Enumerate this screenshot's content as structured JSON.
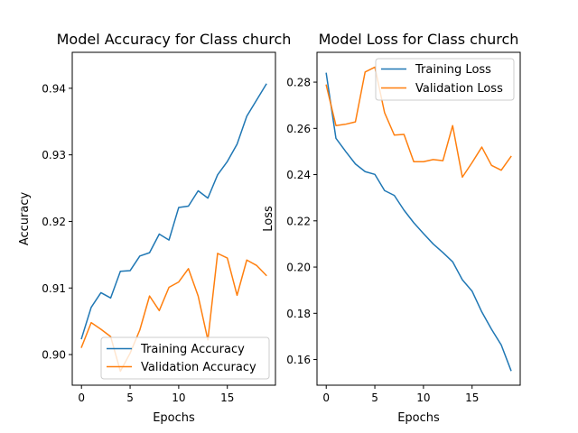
{
  "chart_data": [
    {
      "type": "line",
      "title": "Model Accuracy for Class church",
      "xlabel": "Epochs",
      "ylabel": "Accuracy",
      "xlim": [
        -0.95,
        19.95
      ],
      "ylim": [
        0.8954,
        0.9454
      ],
      "xticks": [
        0,
        5,
        10,
        15
      ],
      "yticks": [
        0.9,
        0.91,
        0.92,
        0.93,
        0.94
      ],
      "ytick_labels": [
        "0.90",
        "0.91",
        "0.92",
        "0.93",
        "0.94"
      ],
      "grid": false,
      "legend_position": "lower-right",
      "x": [
        0,
        1,
        2,
        3,
        4,
        5,
        6,
        7,
        8,
        9,
        10,
        11,
        12,
        13,
        14,
        15,
        16,
        17,
        18,
        19
      ],
      "series": [
        {
          "name": "Training Accuracy",
          "color": "#1f77b4",
          "values": [
            0.9024,
            0.9071,
            0.9093,
            0.9085,
            0.9125,
            0.9126,
            0.9148,
            0.9153,
            0.9181,
            0.9172,
            0.9221,
            0.9223,
            0.9246,
            0.9235,
            0.927,
            0.929,
            0.9316,
            0.9358,
            0.9382,
            0.9406
          ]
        },
        {
          "name": "Validation Accuracy",
          "color": "#ff7f0e",
          "values": [
            0.9011,
            0.9048,
            0.9038,
            0.9027,
            0.8975,
            0.9002,
            0.9037,
            0.9088,
            0.9066,
            0.9101,
            0.9109,
            0.9129,
            0.9088,
            0.9022,
            0.9152,
            0.9145,
            0.9089,
            0.9142,
            0.9134,
            0.9119
          ]
        }
      ]
    },
    {
      "type": "line",
      "title": "Model Loss for Class church",
      "xlabel": "Epochs",
      "ylabel": "Loss",
      "xlim": [
        -0.95,
        19.95
      ],
      "ylim": [
        0.1489,
        0.2929
      ],
      "xticks": [
        0,
        5,
        10,
        15
      ],
      "yticks": [
        0.16,
        0.18,
        0.2,
        0.22,
        0.24,
        0.26,
        0.28
      ],
      "ytick_labels": [
        "0.16",
        "0.18",
        "0.20",
        "0.22",
        "0.24",
        "0.26",
        "0.28"
      ],
      "grid": false,
      "legend_position": "upper-right",
      "x": [
        0,
        1,
        2,
        3,
        4,
        5,
        6,
        7,
        8,
        9,
        10,
        11,
        12,
        13,
        14,
        15,
        16,
        17,
        18,
        19
      ],
      "series": [
        {
          "name": "Training Loss",
          "color": "#1f77b4",
          "values": [
            0.2838,
            0.2557,
            0.25,
            0.2446,
            0.2413,
            0.2401,
            0.2331,
            0.231,
            0.2246,
            0.2192,
            0.2145,
            0.21,
            0.2063,
            0.2023,
            0.1945,
            0.1896,
            0.1806,
            0.1731,
            0.1663,
            0.1553
          ]
        },
        {
          "name": "Validation Loss",
          "color": "#ff7f0e",
          "values": [
            0.2787,
            0.2612,
            0.2618,
            0.2628,
            0.2844,
            0.2865,
            0.2668,
            0.2571,
            0.2574,
            0.2456,
            0.2456,
            0.2465,
            0.246,
            0.2612,
            0.2389,
            0.2452,
            0.2519,
            0.244,
            0.2419,
            0.2478
          ]
        }
      ]
    }
  ]
}
